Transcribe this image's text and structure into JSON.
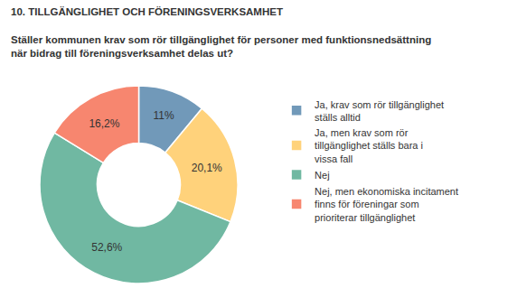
{
  "chart_data": {
    "type": "pie",
    "title": "10. TILLGÄNGLIGHET OCH FÖRENINGSVERKSAMHET",
    "subtitle": "Ställer kommunen krav som rör tillgänglighet för personer med funktionsnedsättning när bidrag till föreningsverksamhet delas ut?",
    "categories": [
      "Ja, krav som rör tillgänglighet ställs alltid",
      "Ja, men krav som rör tillgänglighet ställs bara i vissa fall",
      "Nej",
      "Nej, men ekonomiska incitament finns för föreningar som prioriterar tillgänglighet"
    ],
    "values": [
      11,
      20.1,
      52.6,
      16.2
    ],
    "value_labels": [
      "11%",
      "20,1%",
      "52,6%",
      "16,2%"
    ],
    "colors": [
      "#7199b9",
      "#ffd27b",
      "#70b8a2",
      "#f7866f"
    ],
    "data_labels": true,
    "legend": "right"
  }
}
